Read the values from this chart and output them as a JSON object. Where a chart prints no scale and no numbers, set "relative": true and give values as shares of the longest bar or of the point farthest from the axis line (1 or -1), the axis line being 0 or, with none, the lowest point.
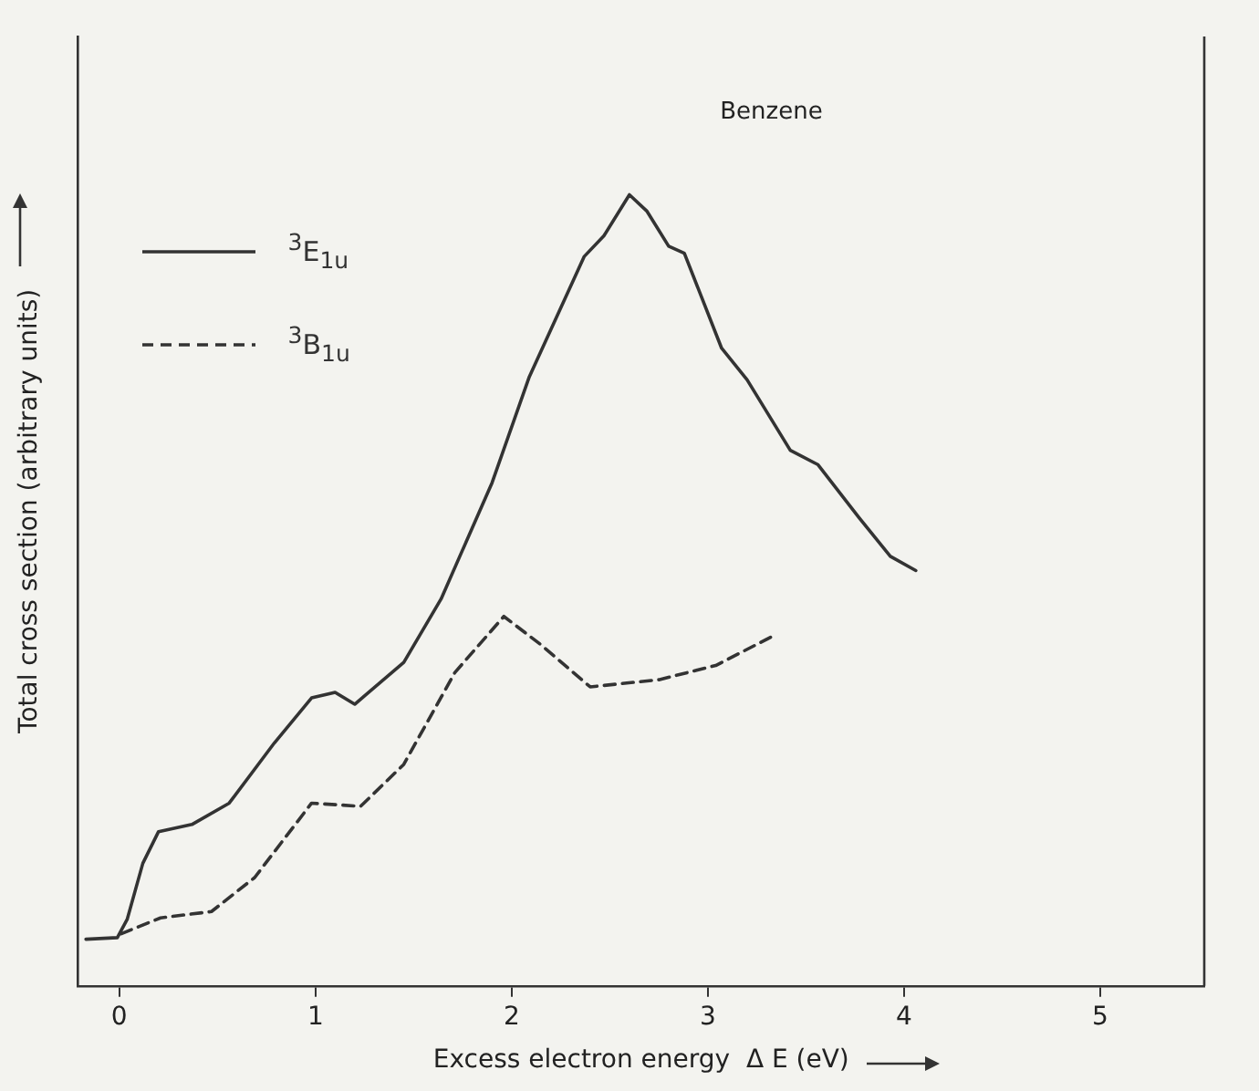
{
  "chart_data": {
    "type": "line",
    "xlabel": "Excess electron energy  Δ E (eV)",
    "ylabel": "Total cross section (arbitrary units)",
    "relative": true,
    "xlim": [
      -0.21,
      5.53
    ],
    "xticks": [
      0,
      1,
      2,
      3,
      4,
      5
    ],
    "grid": false,
    "legend": "top left",
    "marker": "none",
    "annotations": [
      "Benzene"
    ],
    "series": [
      {
        "name": "$^{3}$E$_{1u}$",
        "color": "#333333",
        "line_style": "solid",
        "x": [
          -0.17,
          -0.01,
          0.04,
          0.12,
          0.2,
          0.37,
          0.56,
          0.79,
          0.98,
          1.1,
          1.2,
          1.45,
          1.64,
          1.9,
          2.09,
          2.37,
          2.47,
          2.6,
          2.69,
          2.8,
          2.88,
          3.07,
          3.2,
          3.42,
          3.56,
          3.77,
          3.93,
          4.06
        ],
        "values": [
          0.059,
          0.061,
          0.084,
          0.155,
          0.195,
          0.204,
          0.231,
          0.307,
          0.364,
          0.371,
          0.356,
          0.409,
          0.489,
          0.636,
          0.77,
          0.922,
          0.948,
          1.0,
          0.979,
          0.935,
          0.926,
          0.806,
          0.766,
          0.677,
          0.659,
          0.592,
          0.543,
          0.525
        ]
      },
      {
        "name": "$^{3}$B$_{1u}$",
        "color": "#333333",
        "line_style": "dashed",
        "x": [
          0.01,
          0.21,
          0.47,
          0.69,
          0.98,
          1.23,
          1.45,
          1.71,
          1.96,
          2.15,
          2.4,
          2.75,
          3.04,
          3.33
        ],
        "values": [
          0.066,
          0.086,
          0.094,
          0.137,
          0.231,
          0.227,
          0.28,
          0.396,
          0.467,
          0.431,
          0.378,
          0.387,
          0.405,
          0.442
        ]
      }
    ]
  }
}
